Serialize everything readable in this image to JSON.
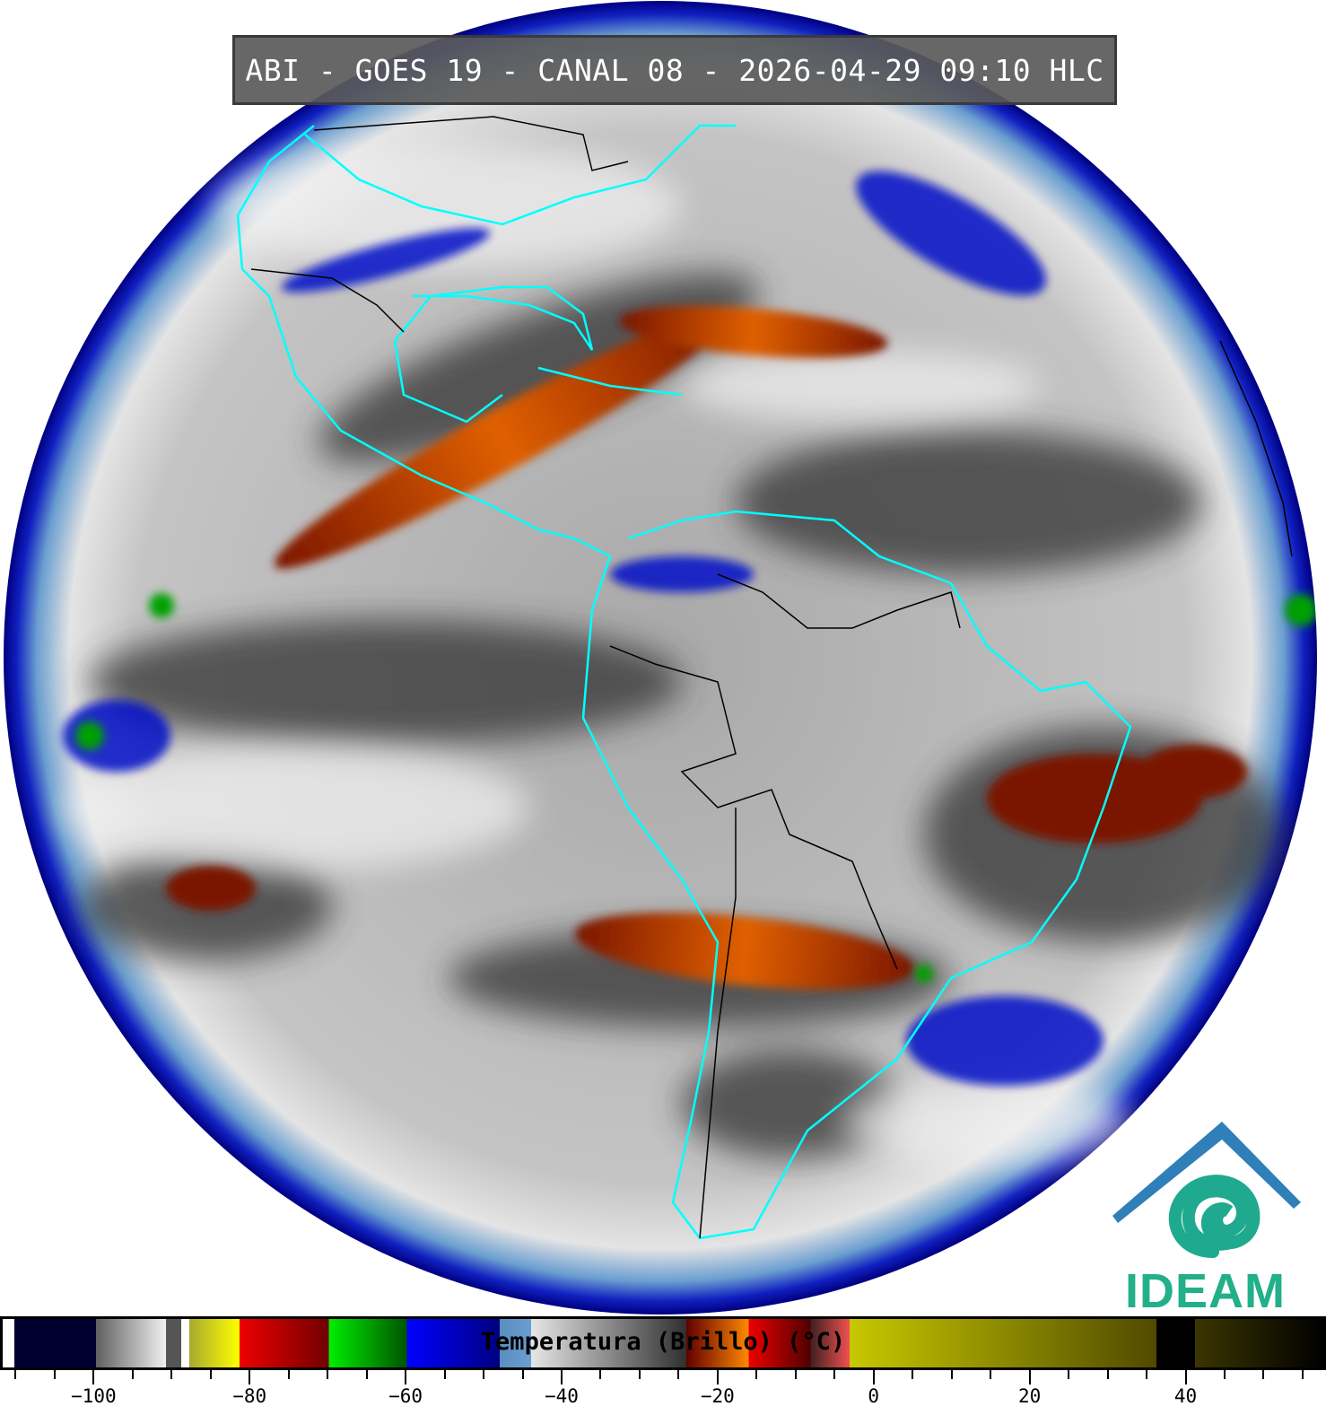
{
  "title": "ABI - GOES 19 - CANAL 08 - 2026-04-29 09:10 HLC",
  "logo": {
    "text": "IDEAM",
    "colors": {
      "roof": "#2f7fb8",
      "swirl": "#1fa98e"
    }
  },
  "colorbar": {
    "label": "Temperatura (Brillo) (°C)",
    "range_c": [
      -112,
      58
    ],
    "tick_step_c": 5,
    "tick_labels": [
      {
        "value": -100,
        "text": "−100"
      },
      {
        "value": -80,
        "text": "−80"
      },
      {
        "value": -60,
        "text": "−60"
      },
      {
        "value": -40,
        "text": "−40"
      },
      {
        "value": -20,
        "text": "−20"
      },
      {
        "value": 0,
        "text": "0"
      },
      {
        "value": 20,
        "text": "20"
      },
      {
        "value": 40,
        "text": "40"
      }
    ],
    "segments": [
      {
        "from": -112,
        "to": -110.5,
        "colors": [
          "#ffffff",
          "#ffffff"
        ]
      },
      {
        "from": -110.5,
        "to": -100,
        "colors": [
          "#000030",
          "#000030"
        ]
      },
      {
        "from": -100,
        "to": -91,
        "colors": [
          "#606060",
          "#f0f0f0"
        ]
      },
      {
        "from": -91,
        "to": -89,
        "colors": [
          "#555555",
          "#555555"
        ]
      },
      {
        "from": -89,
        "to": -88,
        "colors": [
          "#ffffff",
          "#ffffff"
        ]
      },
      {
        "from": -88,
        "to": -81.5,
        "colors": [
          "#a8a830",
          "#ffff00"
        ]
      },
      {
        "from": -81.5,
        "to": -70,
        "colors": [
          "#ee0000",
          "#700000"
        ]
      },
      {
        "from": -70,
        "to": -60,
        "colors": [
          "#00ee00",
          "#005500"
        ]
      },
      {
        "from": -60,
        "to": -48,
        "colors": [
          "#0000ff",
          "#000080"
        ]
      },
      {
        "from": -48,
        "to": -44,
        "colors": [
          "#5a8ec0",
          "#6a9ed0"
        ]
      },
      {
        "from": -44,
        "to": -24,
        "colors": [
          "#e6e6e6",
          "#303030"
        ]
      },
      {
        "from": -24,
        "to": -16,
        "colors": [
          "#600000",
          "#ff8800"
        ]
      },
      {
        "from": -16,
        "to": -8,
        "colors": [
          "#ee0000",
          "#500000"
        ]
      },
      {
        "from": -8,
        "to": -3,
        "colors": [
          "#402020",
          "#f05050"
        ]
      },
      {
        "from": -3,
        "to": 36.5,
        "colors": [
          "#c8c800",
          "#504a00"
        ]
      },
      {
        "from": 36.5,
        "to": 41.5,
        "colors": [
          "#000000",
          "#000000"
        ]
      },
      {
        "from": 41.5,
        "to": 58,
        "colors": [
          "#3a3600",
          "#000000"
        ]
      }
    ]
  }
}
